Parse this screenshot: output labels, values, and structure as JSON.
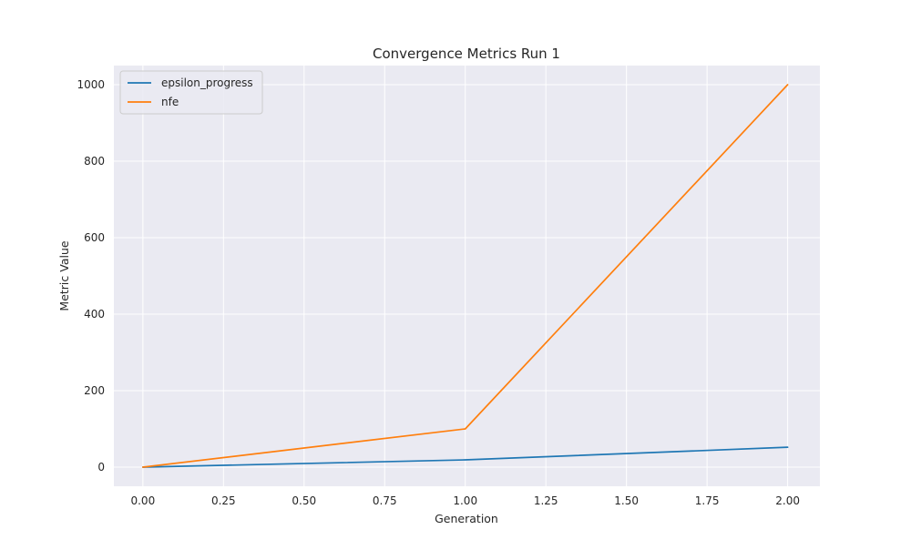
{
  "chart_data": {
    "type": "line",
    "title": "Convergence Metrics Run 1",
    "xlabel": "Generation",
    "ylabel": "Metric Value",
    "x": [
      0,
      1,
      2
    ],
    "xlim": [
      -0.09,
      2.1
    ],
    "ylim": [
      -50,
      1050
    ],
    "xticks": [
      0.0,
      0.25,
      0.5,
      0.75,
      1.0,
      1.25,
      1.5,
      1.75,
      2.0
    ],
    "xtick_labels": [
      "0.00",
      "0.25",
      "0.50",
      "0.75",
      "1.00",
      "1.25",
      "1.50",
      "1.75",
      "2.00"
    ],
    "yticks": [
      0,
      200,
      400,
      600,
      800,
      1000
    ],
    "ytick_labels": [
      "0",
      "200",
      "400",
      "600",
      "800",
      "1000"
    ],
    "grid": true,
    "legend_position": "top-left",
    "series": [
      {
        "name": "epsilon_progress",
        "color": "#1f77b4",
        "values": [
          0,
          19,
          52
        ]
      },
      {
        "name": "nfe",
        "color": "#ff7f0e",
        "values": [
          0,
          100,
          1000
        ]
      }
    ]
  },
  "colors": {
    "plot_background": "#eaeaf2",
    "grid": "#ffffff",
    "text": "#262626",
    "legend_border": "#cccccc"
  }
}
